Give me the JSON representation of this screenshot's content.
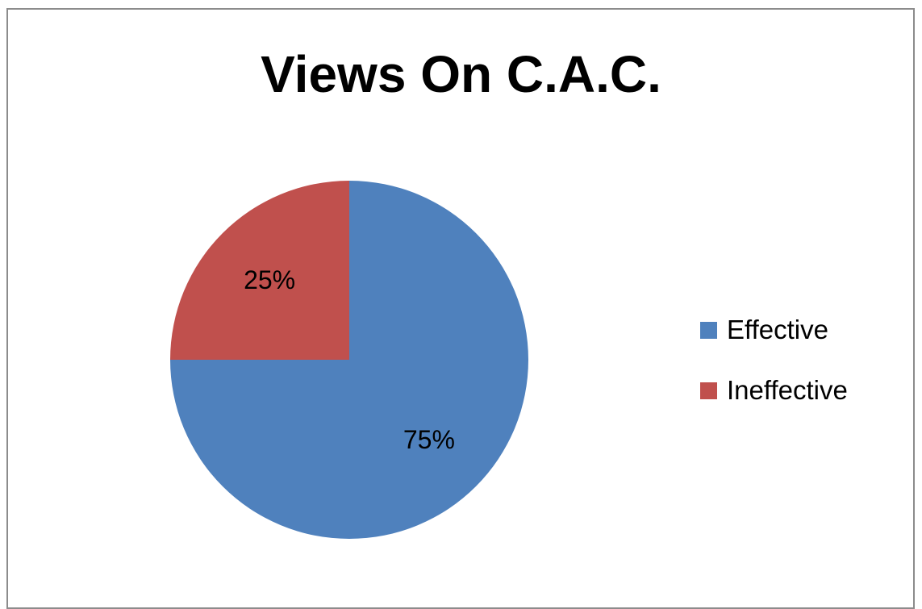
{
  "chart_data": {
    "type": "pie",
    "title": "Views On C.A.C.",
    "slices": [
      {
        "label": "Effective",
        "value": 75,
        "data_label": "75%",
        "color": "#4f81bd"
      },
      {
        "label": "Ineffective",
        "value": 25,
        "data_label": "25%",
        "color": "#c0504d"
      }
    ],
    "legend": "right"
  }
}
